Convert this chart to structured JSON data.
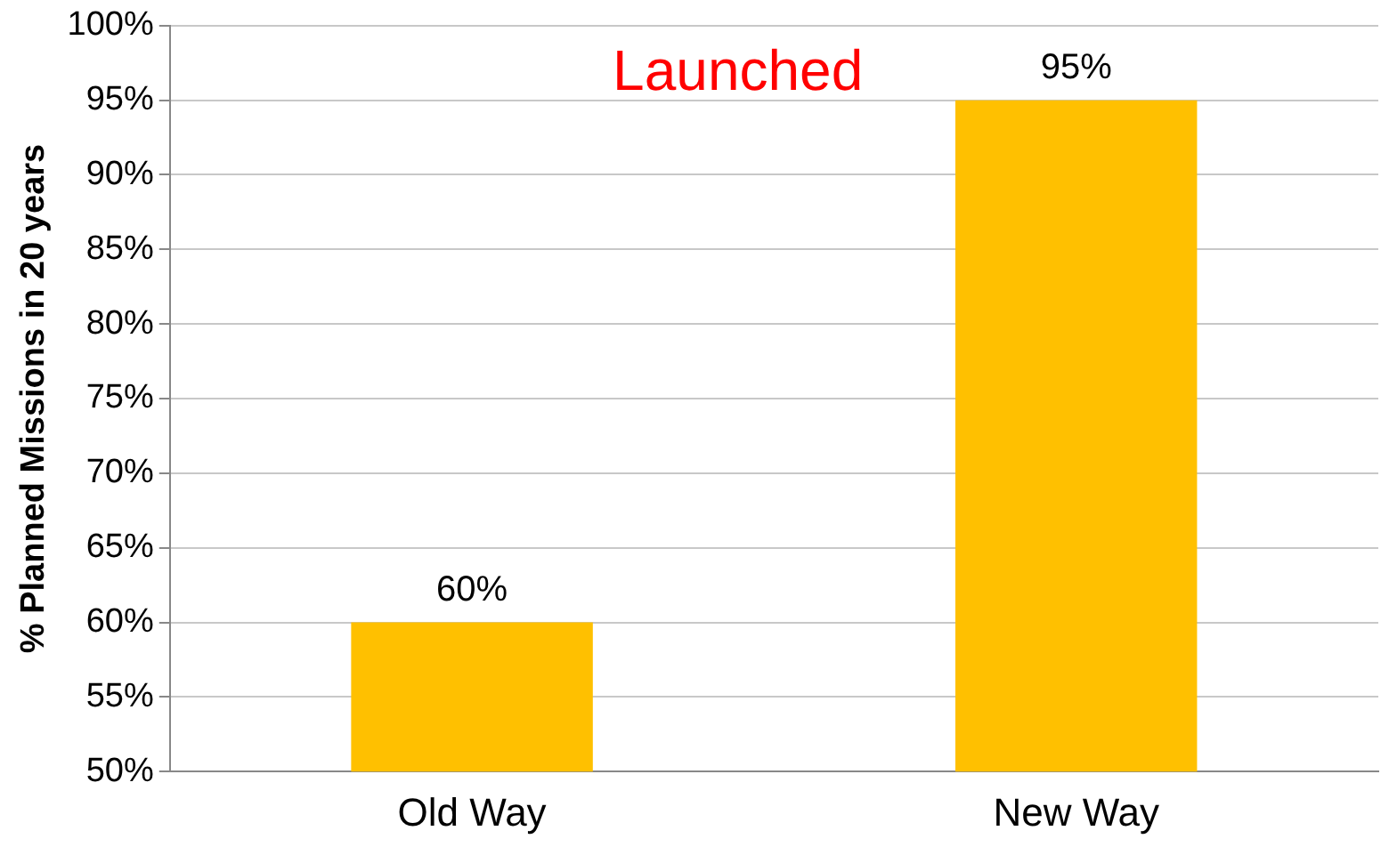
{
  "chart_data": {
    "type": "bar",
    "ylabel": "% Planned Missions in 20 years",
    "categories": [
      "Old Way",
      "New Way"
    ],
    "values": [
      60,
      95
    ],
    "color": "#ffc000",
    "value_labels": [
      "60%",
      "95%"
    ],
    "ylim": [
      50,
      100
    ],
    "yticks": [
      {
        "value": 50,
        "label": "50%"
      },
      {
        "value": 55,
        "label": "55%"
      },
      {
        "value": 60,
        "label": "60%"
      },
      {
        "value": 65,
        "label": "65%"
      },
      {
        "value": 70,
        "label": "70%"
      },
      {
        "value": 75,
        "label": "75%"
      },
      {
        "value": 80,
        "label": "80%"
      },
      {
        "value": 85,
        "label": "85%"
      },
      {
        "value": 90,
        "label": "90%"
      },
      {
        "value": 95,
        "label": "95%"
      },
      {
        "value": 100,
        "label": "100%"
      }
    ],
    "grid": "y",
    "legend": false,
    "annotations": [
      "Launched"
    ]
  }
}
